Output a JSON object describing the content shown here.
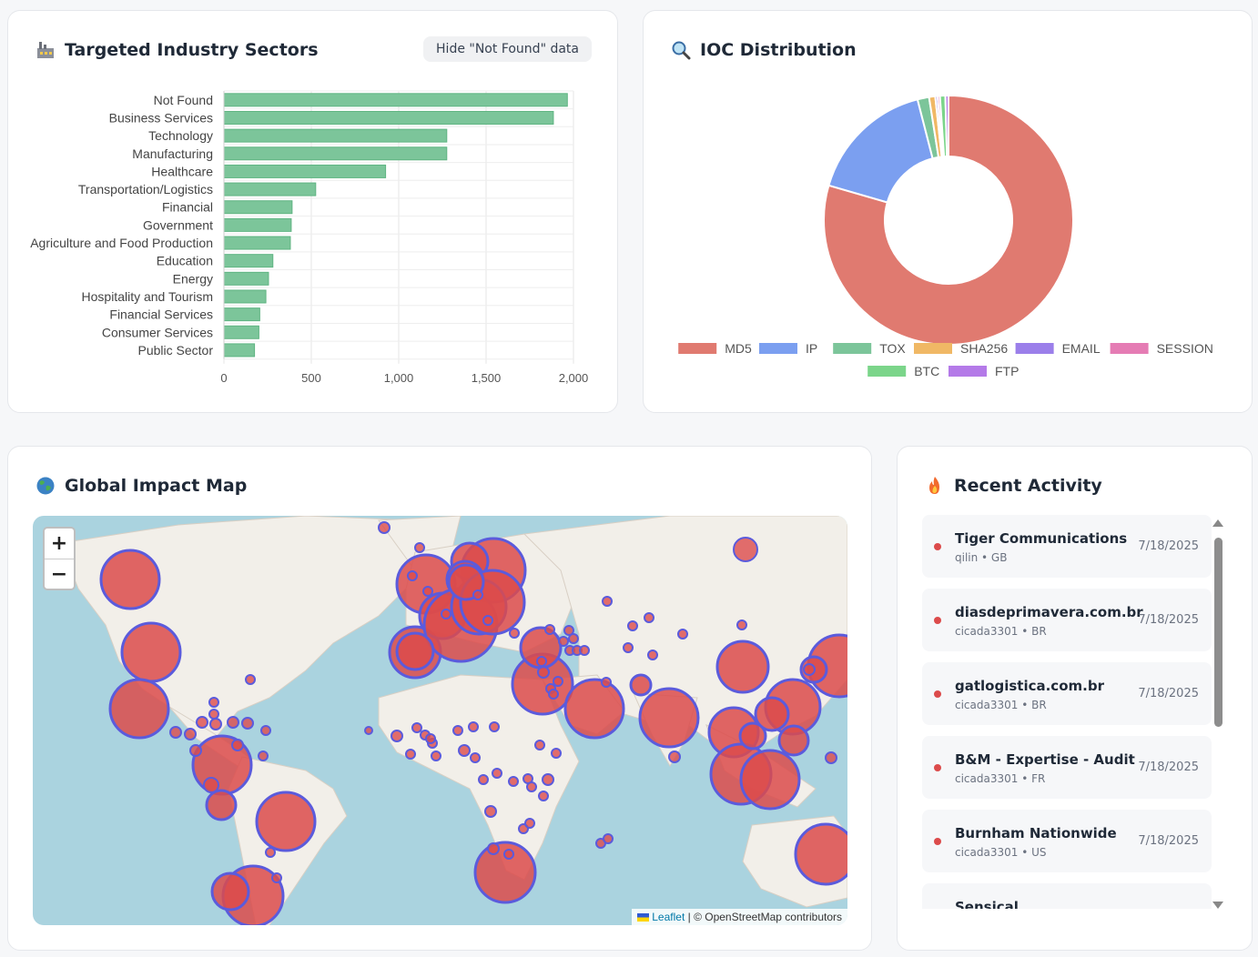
{
  "sectors": {
    "title": "Targeted Industry Sectors",
    "icon": "factory-icon",
    "toggle_label": "Hide \"Not Found\" data",
    "bar_color": "#7cc59a",
    "chart_data": {
      "type": "bar",
      "orientation": "horizontal",
      "categories": [
        "Not Found",
        "Business Services",
        "Technology",
        "Manufacturing",
        "Healthcare",
        "Transportation/Logistics",
        "Financial",
        "Government",
        "Agriculture and Food Production",
        "Education",
        "Energy",
        "Hospitality and Tourism",
        "Financial Services",
        "Consumer Services",
        "Public Sector"
      ],
      "values": [
        1965,
        1885,
        1275,
        1275,
        925,
        525,
        390,
        385,
        380,
        280,
        255,
        240,
        205,
        200,
        175
      ],
      "xlim": [
        0,
        2000
      ],
      "xticks": [
        "0",
        "500",
        "1,000",
        "1,500",
        "2,000"
      ],
      "grid": true
    }
  },
  "ioc": {
    "title": "IOC Distribution",
    "icon": "magnifier-icon",
    "chart_data": {
      "type": "pie",
      "donut": true,
      "legend_position": "bottom",
      "labels": [
        "MD5",
        "IP",
        "TOX",
        "SHA256",
        "EMAIL",
        "SESSION",
        "BTC",
        "FTP"
      ],
      "values": [
        79.5,
        16.5,
        1.5,
        0.8,
        0.3,
        0.3,
        0.7,
        0.4
      ],
      "colors": [
        "#e07a70",
        "#7b9ff0",
        "#7cc59a",
        "#f0b865",
        "#9b7fea",
        "#e57cb4",
        "#7bd58a",
        "#b47ae8"
      ]
    }
  },
  "map": {
    "title": "Global Impact Map",
    "icon": "globe-icon",
    "zoom_in": "+",
    "zoom_out": "−",
    "attribution_link": "Leaflet",
    "attribution_text": "| © OpenStreetMap contributors"
  },
  "activity": {
    "title": "Recent Activity",
    "icon": "fire-icon",
    "items": [
      {
        "name": "Tiger Communications",
        "sub": "qilin • GB",
        "date": "7/18/2025"
      },
      {
        "name": "diasdeprimavera.com.br",
        "sub": "cicada3301 • BR",
        "date": "7/18/2025"
      },
      {
        "name": "gatlogistica.com.br",
        "sub": "cicada3301 • BR",
        "date": "7/18/2025"
      },
      {
        "name": "B&M - Expertise - Audit",
        "sub": "cicada3301 • FR",
        "date": "7/18/2025"
      },
      {
        "name": "Burnham Nationwide",
        "sub": "cicada3301 • US",
        "date": "7/18/2025"
      },
      {
        "name": "Sensical",
        "sub": "",
        "date": ""
      }
    ]
  }
}
